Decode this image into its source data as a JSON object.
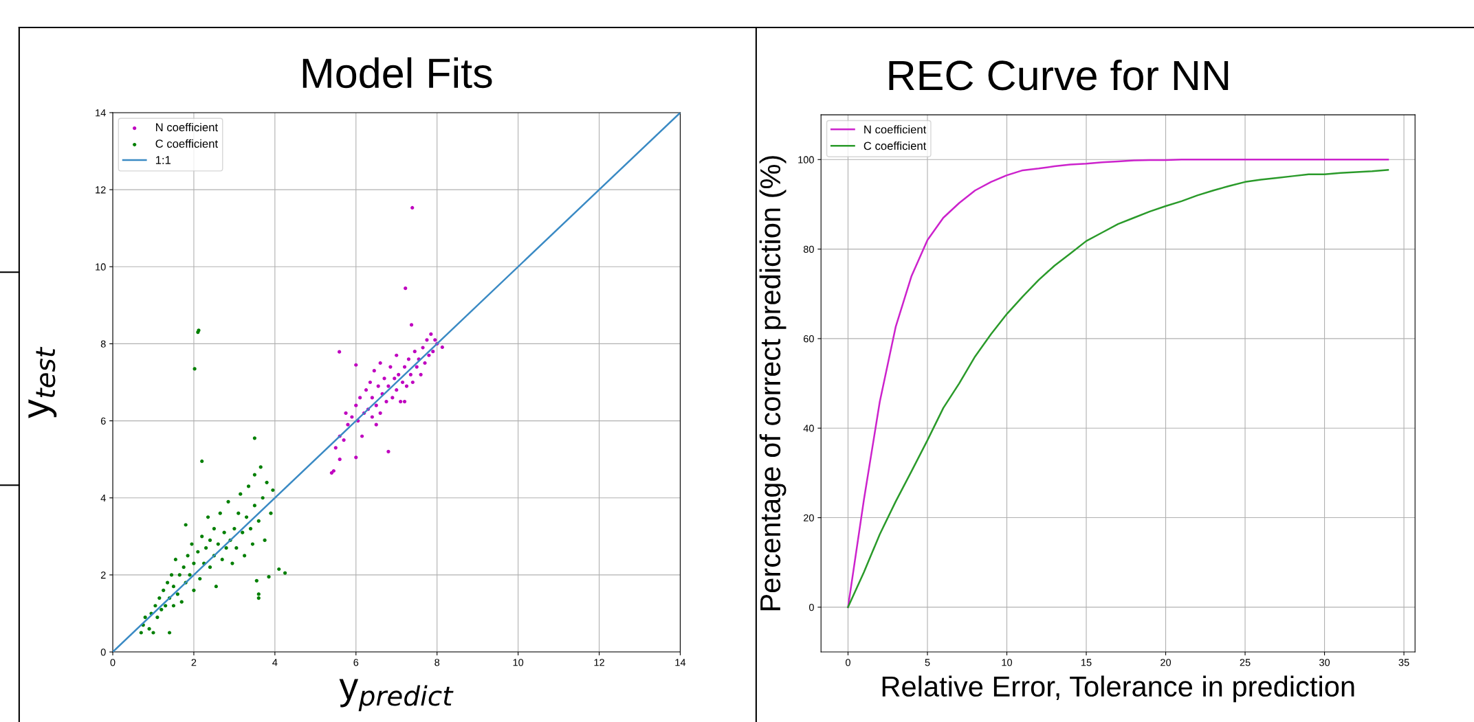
{
  "chart_data": [
    {
      "type": "scatter",
      "title": "Model Fits",
      "xlabel": "y$_{predict}$",
      "ylabel": "y$_{test}$",
      "xlim": [
        0,
        14
      ],
      "ylim": [
        0,
        14
      ],
      "xticks": [
        0,
        2,
        4,
        6,
        8,
        10,
        12,
        14
      ],
      "yticks": [
        0,
        2,
        4,
        6,
        8,
        10,
        12,
        14
      ],
      "grid": true,
      "legend": "top left",
      "series": [
        {
          "name": "N coefficient",
          "color": "#bf00bf",
          "marker": "circle",
          "x": [
            5.4,
            5.45,
            5.6,
            5.5,
            5.6,
            5.7,
            5.8,
            5.75,
            5.9,
            6.0,
            6.0,
            6.0,
            6.05,
            6.1,
            6.15,
            6.2,
            6.25,
            6.3,
            6.35,
            6.4,
            6.4,
            6.45,
            6.5,
            6.55,
            6.6,
            6.6,
            6.65,
            6.7,
            6.75,
            6.8,
            6.8,
            6.85,
            6.9,
            6.95,
            7.0,
            7.0,
            7.05,
            7.1,
            7.15,
            7.2,
            7.22,
            7.25,
            7.3,
            7.35,
            7.37,
            7.39,
            7.4,
            7.45,
            7.5,
            7.55,
            7.6,
            7.65,
            7.7,
            7.75,
            7.8,
            7.85,
            7.9,
            7.95,
            8.0,
            8.13,
            5.59,
            6.5,
            7.2
          ],
          "values": [
            4.65,
            4.7,
            5.0,
            5.3,
            5.6,
            5.5,
            5.9,
            6.2,
            6.1,
            5.05,
            6.4,
            7.45,
            6.0,
            6.6,
            5.6,
            6.2,
            6.8,
            6.3,
            7.0,
            6.1,
            6.6,
            7.3,
            6.4,
            6.9,
            6.2,
            7.5,
            6.7,
            7.1,
            6.5,
            5.2,
            6.9,
            7.4,
            6.6,
            7.1,
            6.8,
            7.7,
            7.2,
            6.5,
            7.0,
            7.4,
            9.44,
            6.9,
            7.6,
            7.2,
            8.49,
            11.53,
            7.0,
            7.8,
            7.4,
            7.6,
            7.2,
            7.9,
            7.5,
            8.1,
            7.7,
            8.25,
            7.8,
            8.1,
            8.0,
            7.91,
            7.79,
            5.9,
            6.5
          ]
        },
        {
          "name": "C coefficient",
          "color": "#007f00",
          "marker": "circle",
          "x": [
            0.7,
            0.75,
            0.8,
            0.9,
            0.95,
            1.0,
            1.05,
            1.1,
            1.15,
            1.2,
            1.25,
            1.3,
            1.35,
            1.4,
            1.4,
            1.45,
            1.5,
            1.5,
            1.55,
            1.6,
            1.65,
            1.7,
            1.75,
            1.8,
            1.8,
            1.85,
            1.9,
            1.95,
            2.0,
            2.0,
            2.02,
            2.1,
            2.12,
            2.1,
            2.15,
            2.2,
            2.2,
            2.25,
            2.3,
            2.35,
            2.4,
            2.4,
            2.5,
            2.5,
            2.55,
            2.6,
            2.65,
            2.7,
            2.75,
            2.8,
            2.85,
            2.9,
            2.95,
            3.0,
            3.05,
            3.1,
            3.15,
            3.2,
            3.25,
            3.3,
            3.35,
            3.4,
            3.45,
            3.5,
            3.5,
            3.5,
            3.55,
            3.6,
            3.6,
            3.6,
            3.65,
            3.7,
            3.75,
            3.8,
            3.85,
            3.9,
            3.95,
            4.1,
            4.25
          ],
          "values": [
            0.5,
            0.7,
            0.9,
            0.6,
            1.0,
            0.5,
            1.2,
            0.9,
            1.4,
            1.1,
            1.6,
            1.2,
            1.8,
            0.5,
            1.4,
            2.0,
            1.2,
            1.7,
            2.4,
            1.5,
            2.0,
            1.3,
            2.2,
            1.8,
            3.3,
            2.5,
            2.0,
            2.8,
            1.6,
            2.3,
            7.35,
            8.3,
            8.35,
            2.6,
            1.9,
            4.95,
            3.0,
            2.3,
            2.7,
            3.5,
            2.2,
            2.9,
            2.5,
            3.2,
            1.7,
            2.8,
            3.6,
            2.4,
            3.1,
            2.7,
            3.9,
            2.9,
            2.3,
            3.2,
            2.7,
            3.6,
            4.1,
            3.1,
            2.5,
            3.5,
            4.3,
            3.2,
            2.8,
            5.55,
            3.8,
            4.6,
            1.85,
            1.5,
            1.4,
            3.4,
            4.8,
            4.0,
            2.9,
            4.4,
            1.95,
            3.6,
            4.2,
            2.15,
            2.05
          ]
        },
        {
          "name": "1:1",
          "type": "line",
          "color": "#3a8ac4",
          "marker": "none",
          "x": [
            0,
            14
          ],
          "values": [
            0,
            14
          ]
        }
      ]
    },
    {
      "type": "line",
      "title": "REC Curve for NN",
      "xlabel": "Relative Error, Tolerance in prediction",
      "ylabel": "Percentage of correct prediction (%)",
      "x": [
        0,
        1,
        2,
        3,
        4,
        5,
        6,
        7,
        8,
        9,
        10,
        11,
        12,
        13,
        14,
        15,
        16,
        17,
        18,
        19,
        20,
        21,
        22,
        23,
        24,
        25,
        26,
        27,
        28,
        29,
        30,
        31,
        32,
        33,
        34
      ],
      "xlim": [
        -1.7,
        35.7
      ],
      "ylim": [
        -10,
        110
      ],
      "xticks": [
        0,
        5,
        10,
        15,
        20,
        25,
        30,
        35
      ],
      "yticks": [
        0,
        20,
        40,
        60,
        80,
        100
      ],
      "grid": true,
      "legend": "top left",
      "marker": "none",
      "line_style": "solid",
      "series": [
        {
          "name": "N coefficient",
          "color": "#cc22cc",
          "values": [
            0,
            24,
            45.9,
            62.6,
            74,
            82,
            87,
            90.3,
            93.1,
            95,
            96.5,
            97.6,
            98,
            98.5,
            98.9,
            99.1,
            99.4,
            99.6,
            99.8,
            99.9,
            99.9,
            100,
            100,
            100,
            100,
            100,
            100,
            100,
            100,
            100,
            100,
            100,
            100,
            100,
            100
          ]
        },
        {
          "name": "C coefficient",
          "color": "#2a9a2a",
          "values": [
            0,
            7.8,
            16.3,
            23.6,
            30.4,
            37.3,
            44.5,
            50,
            56,
            61,
            65.5,
            69.4,
            73.1,
            76.3,
            79,
            81.8,
            83.7,
            85.6,
            87,
            88.4,
            89.6,
            90.7,
            92,
            93.1,
            94.1,
            95,
            95.5,
            95.9,
            96.3,
            96.7,
            96.7,
            97,
            97.2,
            97.4,
            97.7
          ]
        }
      ]
    }
  ]
}
